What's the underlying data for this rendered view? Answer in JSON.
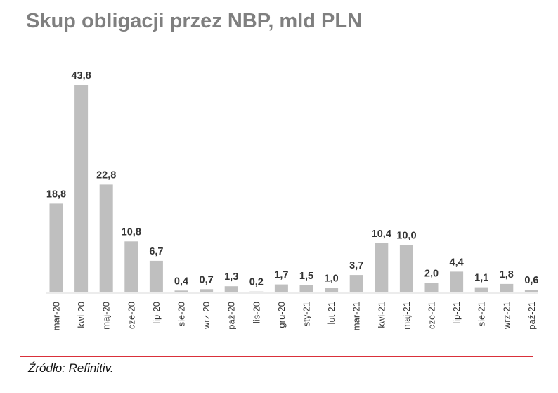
{
  "title": "Skup obligacji przez NBP, mld PLN",
  "source": "Źródło: Refinitiv.",
  "colors": {
    "bar": "#bfbfbf",
    "title": "#7f7f7f",
    "rule": "#d9303a",
    "axis": "#d9d9d9"
  },
  "chart_data": {
    "type": "bar",
    "title": "Skup obligacji przez NBP, mld PLN",
    "categories": [
      "mar-20",
      "kwi-20",
      "maj-20",
      "cze-20",
      "lip-20",
      "sie-20",
      "wrz-20",
      "paź-20",
      "lis-20",
      "gru-20",
      "sty-21",
      "lut-21",
      "mar-21",
      "kwi-21",
      "maj-21",
      "cze-21",
      "lip-21",
      "sie-21",
      "wrz-21",
      "paź-21"
    ],
    "values": [
      18.8,
      43.8,
      22.8,
      10.8,
      6.7,
      0.4,
      0.7,
      1.3,
      0.2,
      1.7,
      1.5,
      1.0,
      3.7,
      10.4,
      10.0,
      2.0,
      4.4,
      1.1,
      1.8,
      0.6
    ],
    "value_labels": [
      "18,8",
      "43,8",
      "22,8",
      "10,8",
      "6,7",
      "0,4",
      "0,7",
      "1,3",
      "0,2",
      "1,7",
      "1,5",
      "1,0",
      "3,7",
      "10,4",
      "10,0",
      "2,0",
      "4,4",
      "1,1",
      "1,8",
      "0,6"
    ],
    "ylim": [
      0,
      43.8
    ],
    "grid": false,
    "legend": "none"
  }
}
